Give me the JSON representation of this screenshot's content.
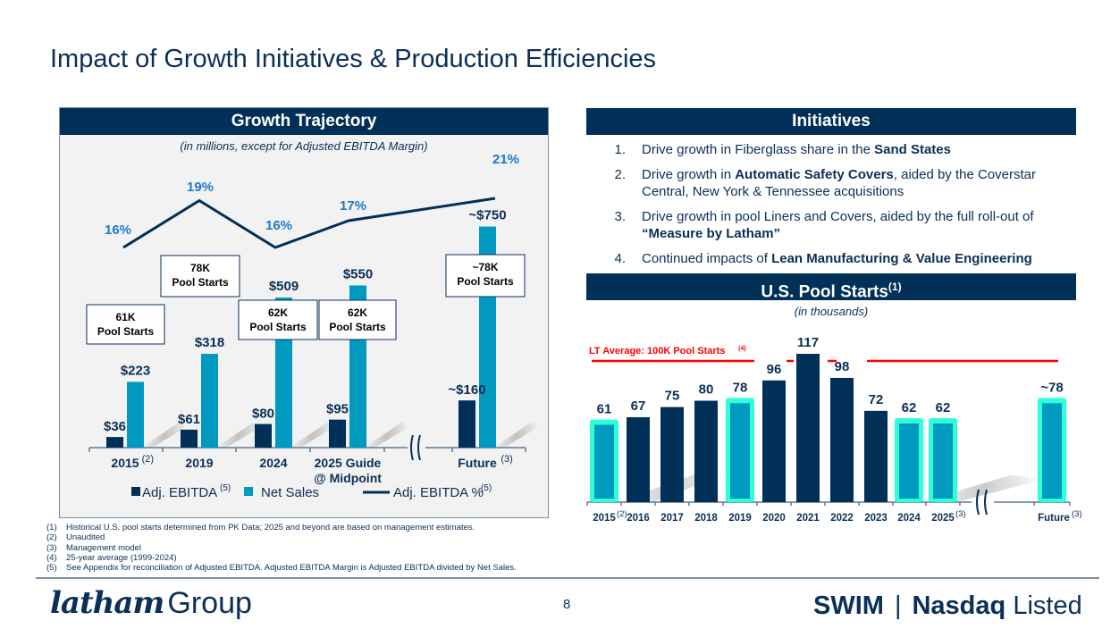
{
  "page": {
    "title": "Impact of Growth Initiatives & Production Efficiencies",
    "page_number": "8",
    "logo": {
      "script": "latham",
      "word": "Group"
    },
    "ticker": {
      "symbol": "SWIM",
      "separator": "|",
      "exchange_bold": "Nasdaq",
      "exchange_rest": "Listed"
    }
  },
  "colors": {
    "navy": "#002f57",
    "teal": "#0099c0",
    "highlight": "#2effd6",
    "pct_blue": "#1f78c8",
    "lt_average_red": "#ff0000",
    "panel_bg": "#f2f2f2"
  },
  "initiatives": {
    "header": "Initiatives",
    "items": [
      {
        "num": "1.",
        "parts": [
          {
            "t": "Drive growth in Fiberglass share in the ",
            "b": false
          },
          {
            "t": "Sand States",
            "b": true
          }
        ]
      },
      {
        "num": "2.",
        "parts": [
          {
            "t": "Drive growth in ",
            "b": false
          },
          {
            "t": "Automatic Safety Covers",
            "b": true
          },
          {
            "t": ", aided by the Coverstar Central, New York & Tennessee acquisitions",
            "b": false
          }
        ]
      },
      {
        "num": "3.",
        "parts": [
          {
            "t": "Drive growth in pool Liners and Covers, aided by the full roll-out of ",
            "b": false
          },
          {
            "t": "“Measure by Latham”",
            "b": true
          }
        ]
      },
      {
        "num": "4.",
        "parts": [
          {
            "t": "Continued impacts of ",
            "b": false
          },
          {
            "t": "Lean Manufacturing & Value Engineering",
            "b": true
          }
        ]
      }
    ]
  },
  "footnotes": [
    {
      "n": "(1)",
      "text": "Historical U.S. pool starts determined from PK Data; 2025 and beyond are based on management estimates."
    },
    {
      "n": "(2)",
      "text": "Unaudited"
    },
    {
      "n": "(3)",
      "text": "Management model"
    },
    {
      "n": "(4)",
      "text": "25-year average (1999-2024)"
    },
    {
      "n": "(5)",
      "text": "See Appendix for reconciliation of Adjusted EBITDA. Adjusted EBITDA Margin is Adjusted EBITDA divided by Net Sales."
    }
  ],
  "chart_data": [
    {
      "type": "bar",
      "title": "Growth Trajectory",
      "subtitle": "(in millions, except for Adjusted EBITDA Margin)",
      "categories": [
        "2015",
        "2019",
        "2024",
        "2025 Guide @ Midpoint",
        "Future"
      ],
      "category_lines": [
        [
          "2015"
        ],
        [
          "2019"
        ],
        [
          "2024"
        ],
        [
          "2025 Guide",
          "@ Midpoint"
        ],
        [
          "Future"
        ]
      ],
      "category_superscripts": [
        "(2)",
        "",
        "",
        "",
        "(3)"
      ],
      "axis_break_after_index": 3,
      "ylim": [
        0,
        800
      ],
      "series": [
        {
          "name": "Adj. EBITDA",
          "superscript": "(5)",
          "kind": "bar",
          "color": "#002f57",
          "values": [
            36,
            61,
            80,
            95,
            160
          ],
          "labels": [
            "$36",
            "$61",
            "$80",
            "$95",
            "~$160"
          ]
        },
        {
          "name": "Net Sales",
          "superscript": "",
          "kind": "bar",
          "color": "#0099c0",
          "values": [
            223,
            318,
            509,
            550,
            750
          ],
          "labels": [
            "$223",
            "$318",
            "$509",
            "$550",
            "~$750"
          ]
        },
        {
          "name": "Adj. EBITDA %",
          "superscript": "(5)",
          "kind": "line",
          "color": "#002f57",
          "values": [
            16,
            19,
            16,
            17,
            21
          ],
          "labels": [
            "16%",
            "19%",
            "16%",
            "17%",
            "21%"
          ]
        }
      ],
      "annotations": [
        {
          "category": "2015",
          "lines": [
            "61K",
            "Pool Starts"
          ]
        },
        {
          "category": "2019",
          "lines": [
            "78K",
            "Pool Starts"
          ]
        },
        {
          "category": "2024",
          "lines": [
            "62K",
            "Pool Starts"
          ]
        },
        {
          "category": "2025 Guide @ Midpoint",
          "lines": [
            "62K",
            "Pool Starts"
          ]
        },
        {
          "category": "Future",
          "lines": [
            "~78K",
            "Pool Starts"
          ]
        }
      ],
      "legend": "bottom",
      "grid": false
    },
    {
      "type": "bar",
      "title": "U.S. Pool Starts",
      "title_superscript": "(1)",
      "subtitle": "(in thousands)",
      "categories": [
        "2015",
        "2016",
        "2017",
        "2018",
        "2019",
        "2020",
        "2021",
        "2022",
        "2023",
        "2024",
        "2025",
        "Future"
      ],
      "category_superscripts": [
        "(2)",
        "",
        "",
        "",
        "",
        "",
        "",
        "",
        "",
        "",
        "(3)",
        "(3)"
      ],
      "values": [
        61,
        67,
        75,
        80,
        78,
        96,
        117,
        98,
        72,
        62,
        62,
        78
      ],
      "labels": [
        "61",
        "67",
        "75",
        "80",
        "78",
        "96",
        "117",
        "98",
        "72",
        "62",
        "62",
        "~78"
      ],
      "highlighted": [
        true,
        false,
        false,
        false,
        true,
        false,
        false,
        false,
        false,
        true,
        true,
        true
      ],
      "axis_break_after_index": 10,
      "reference_line": {
        "label": "LT Average: 100K Pool Starts",
        "superscript": "(4)",
        "value": 100
      },
      "ylim": [
        0,
        125
      ],
      "legend": "none",
      "grid": false
    }
  ]
}
